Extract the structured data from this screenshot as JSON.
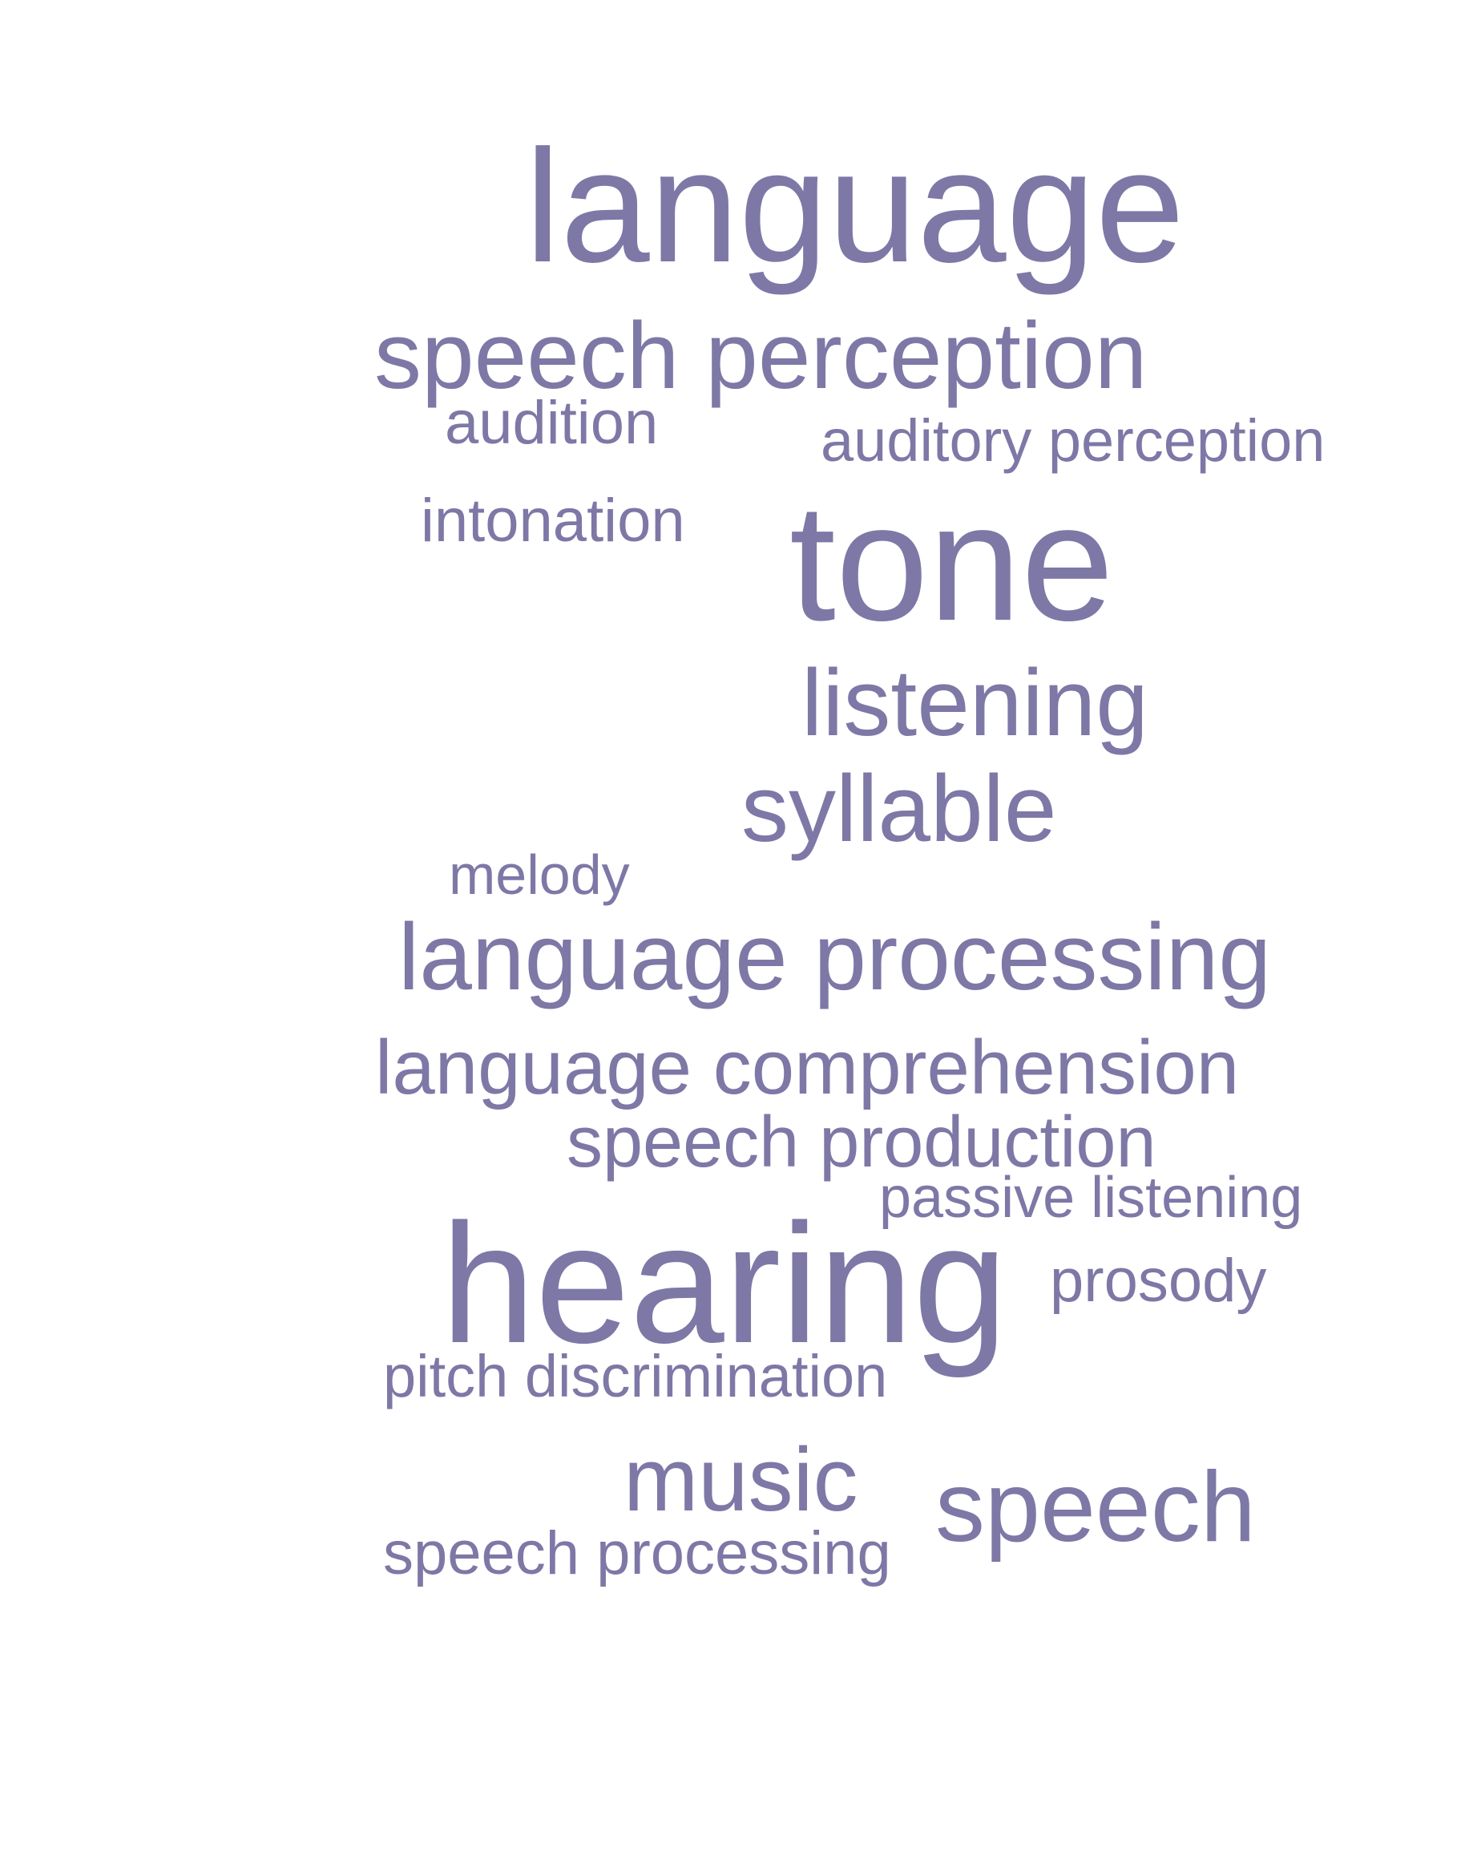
{
  "colors": {
    "word": "#7d78a6",
    "background": "#ffffff"
  },
  "words": [
    {
      "text": "language"
    },
    {
      "text": "speech perception"
    },
    {
      "text": "audition"
    },
    {
      "text": "auditory perception"
    },
    {
      "text": "intonation"
    },
    {
      "text": "tone"
    },
    {
      "text": "listening"
    },
    {
      "text": "syllable"
    },
    {
      "text": "melody"
    },
    {
      "text": "language processing"
    },
    {
      "text": "language comprehension"
    },
    {
      "text": "speech production"
    },
    {
      "text": "passive listening"
    },
    {
      "text": "hearing"
    },
    {
      "text": "prosody"
    },
    {
      "text": "pitch discrimination"
    },
    {
      "text": "music"
    },
    {
      "text": "speech"
    },
    {
      "text": "speech processing"
    }
  ]
}
